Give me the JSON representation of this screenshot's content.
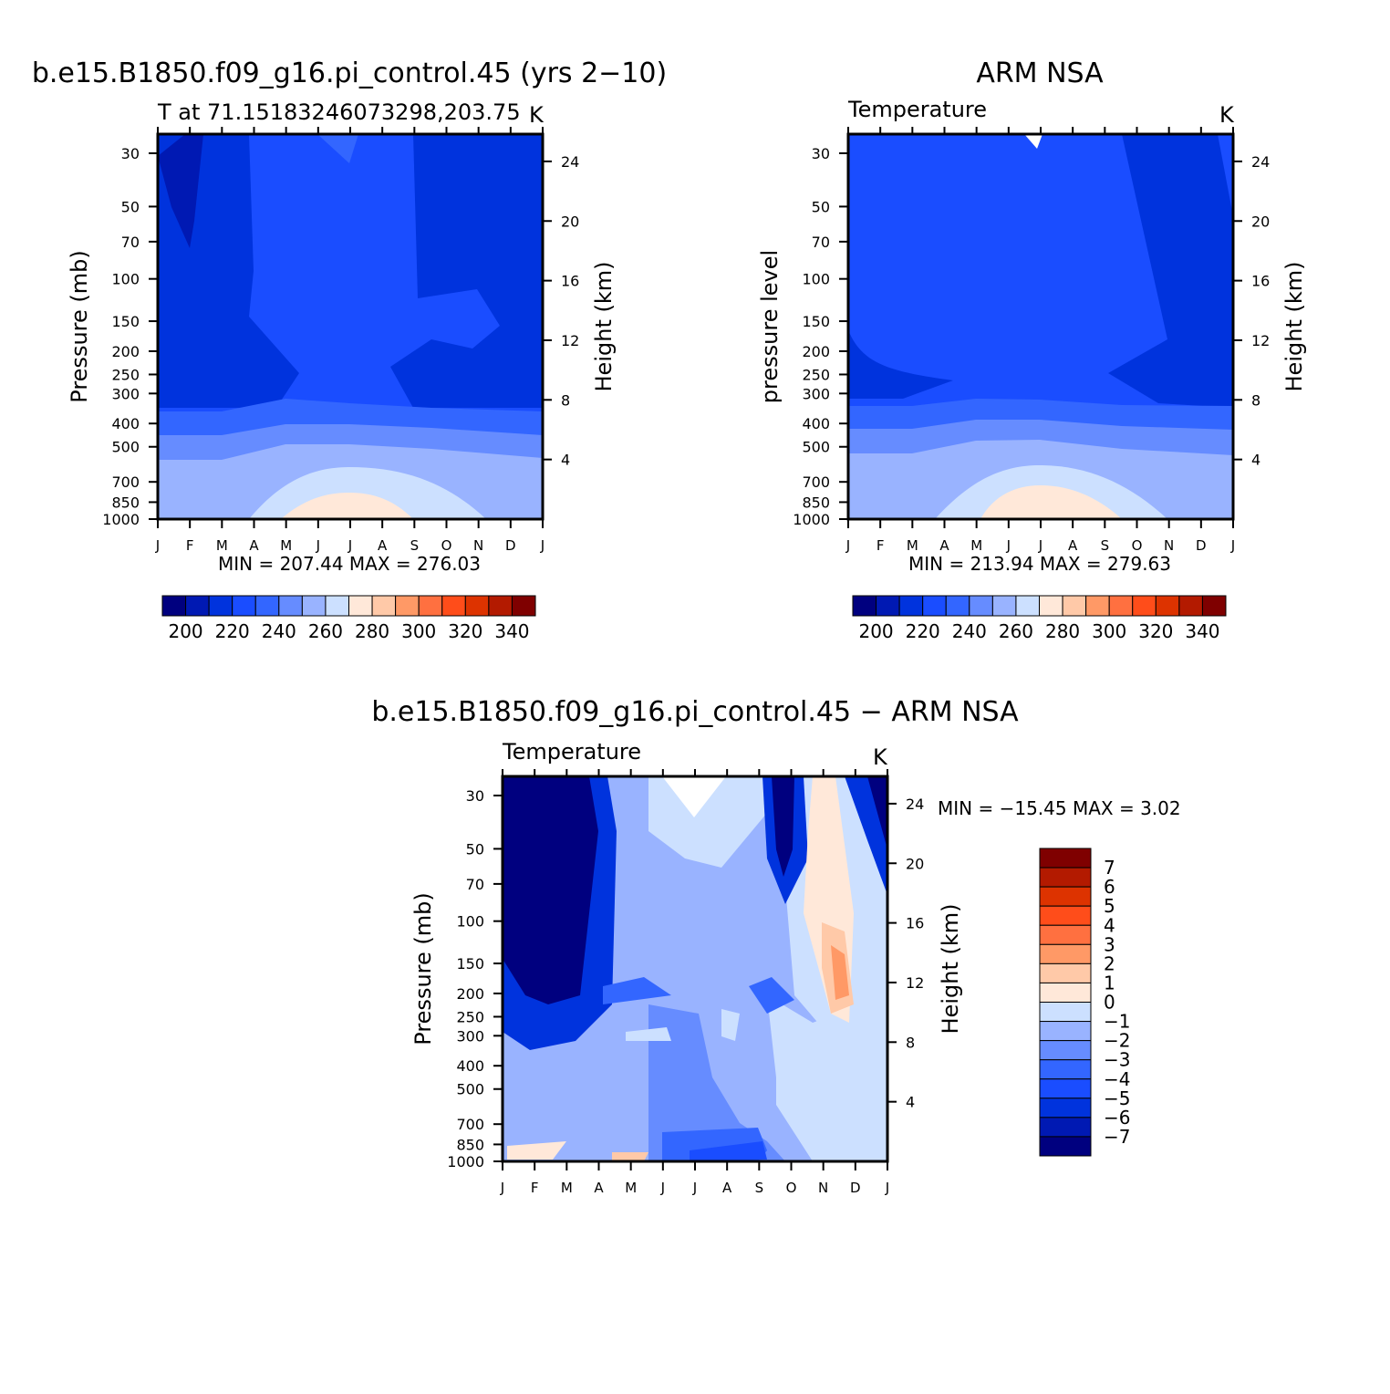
{
  "colors": {
    "abs_scale": [
      "#00007f",
      "#0019b3",
      "#0033dd",
      "#1a4dff",
      "#3366ff",
      "#668cff",
      "#99b3ff",
      "#cce0ff",
      "#ffe8d9",
      "#ffc9a8",
      "#ff9966",
      "#ff7040",
      "#ff4d1a",
      "#dd3300",
      "#b31a00",
      "#7f0000"
    ],
    "diff_scale": [
      "#00007f",
      "#0019b3",
      "#0033dd",
      "#1a4dff",
      "#3366ff",
      "#668cff",
      "#99b3ff",
      "#cce0ff",
      "#ffe8d9",
      "#ffc9a8",
      "#ff9966",
      "#ff7040",
      "#ff4d1a",
      "#dd3300",
      "#b31a00",
      "#7f0000"
    ]
  },
  "chart_data": [
    {
      "type": "heatmap",
      "title": "b.e15.B1850.f09_g16.pi_control.45 (yrs 2−10)",
      "subtitle_left": "T at 71.15183246073298,203.75",
      "subtitle_right": "K",
      "ylabel": "Pressure (mb)",
      "ylabel_right": "Height (km)",
      "x_ticks": [
        "J",
        "F",
        "M",
        "A",
        "M",
        "J",
        "J",
        "A",
        "S",
        "O",
        "N",
        "D",
        "J"
      ],
      "y_ticks": [
        "30",
        "50",
        "70",
        "100",
        "150",
        "200",
        "250",
        "300",
        "400",
        "500",
        "700",
        "850",
        "1000"
      ],
      "y_ticks_right": [
        "24",
        "20",
        "16",
        "12",
        "8",
        "4"
      ],
      "min_max": "MIN = 207.44 MAX = 276.03",
      "colorbar_labels": [
        "200",
        "220",
        "240",
        "260",
        "280",
        "300",
        "320",
        "340"
      ]
    },
    {
      "type": "heatmap",
      "title": "ARM NSA",
      "subtitle_left": "Temperature",
      "subtitle_right": "K",
      "ylabel": "pressure level",
      "ylabel_right": "Height (km)",
      "x_ticks": [
        "J",
        "F",
        "M",
        "A",
        "M",
        "J",
        "J",
        "A",
        "S",
        "O",
        "N",
        "D",
        "J"
      ],
      "y_ticks": [
        "30",
        "50",
        "70",
        "100",
        "150",
        "200",
        "250",
        "300",
        "400",
        "500",
        "700",
        "850",
        "1000"
      ],
      "y_ticks_right": [
        "24",
        "20",
        "16",
        "12",
        "8",
        "4"
      ],
      "min_max": "MIN = 213.94 MAX = 279.63",
      "colorbar_labels": [
        "200",
        "220",
        "240",
        "260",
        "280",
        "300",
        "320",
        "340"
      ]
    },
    {
      "type": "heatmap",
      "title": "b.e15.B1850.f09_g16.pi_control.45 − ARM NSA",
      "subtitle_left": "Temperature",
      "subtitle_right": "K",
      "ylabel": "Pressure (mb)",
      "ylabel_right": "Height (km)",
      "x_ticks": [
        "J",
        "F",
        "M",
        "A",
        "M",
        "J",
        "J",
        "A",
        "S",
        "O",
        "N",
        "D",
        "J"
      ],
      "y_ticks": [
        "30",
        "50",
        "70",
        "100",
        "150",
        "200",
        "250",
        "300",
        "400",
        "500",
        "700",
        "850",
        "1000"
      ],
      "y_ticks_right": [
        "24",
        "20",
        "16",
        "12",
        "8",
        "4"
      ],
      "min_max": "MIN = −15.45 MAX =    3.02",
      "colorbar_labels": [
        "7",
        "6",
        "5",
        "4",
        "3",
        "2",
        "1",
        "0",
        "−1",
        "−2",
        "−3",
        "−4",
        "−5",
        "−6",
        "−7"
      ]
    }
  ]
}
